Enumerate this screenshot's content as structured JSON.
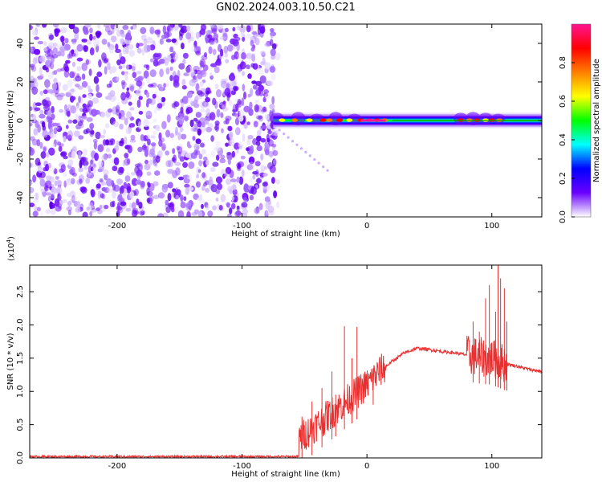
{
  "title": "GN02.2024.003.10.50.C21",
  "chart_data": [
    {
      "type": "heatmap",
      "xlabel": "Height of straight line (km)",
      "ylabel": "Frequency (Hz)",
      "xlim": [
        -270,
        140
      ],
      "ylim": [
        -50,
        50
      ],
      "xticks": [
        -200,
        -100,
        0,
        100
      ],
      "yticks": [
        -40,
        -20,
        0,
        20,
        40
      ],
      "colorbar": {
        "label": "Normalized spectral amplitude",
        "range": [
          0,
          1
        ],
        "ticks": [
          0.0,
          0.2,
          0.4,
          0.6,
          0.8
        ],
        "colors": [
          "#ffffff",
          "#6a00ff",
          "#0000ff",
          "#00ffff",
          "#00ff00",
          "#ffff00",
          "#ff7f00",
          "#ff0000",
          "#ff1493"
        ]
      },
      "noise_region_x": [
        -270,
        -75
      ],
      "signal_band": {
        "x": [
          -75,
          140
        ],
        "center_hz": 0,
        "halfwidth_hz": 4
      }
    },
    {
      "type": "line",
      "xlabel": "Height of straight line (km)",
      "ylabel": "SNR (10 * v/v)",
      "scale_label": "(x10",
      "scale_exp": "4",
      "scale_close": ")",
      "xlim": [
        -270,
        140
      ],
      "ylim": [
        0,
        2.9
      ],
      "xticks": [
        -200,
        -100,
        0,
        100
      ],
      "yticks": [
        0.0,
        0.5,
        1.0,
        1.5,
        2.0,
        2.5
      ],
      "color": "#e83030",
      "envelope": {
        "x": [
          -270,
          -55,
          -54,
          -50,
          -40,
          -30,
          -20,
          -10,
          0,
          10,
          20,
          30,
          40,
          50,
          60,
          70,
          80,
          90,
          100,
          110,
          120,
          130,
          140
        ],
        "y": [
          0.02,
          0.02,
          0.3,
          0.35,
          0.5,
          0.65,
          0.8,
          0.95,
          1.1,
          1.3,
          1.45,
          1.58,
          1.65,
          1.63,
          1.6,
          1.58,
          1.55,
          1.52,
          1.5,
          1.42,
          1.38,
          1.33,
          1.3
        ]
      },
      "spikes": [
        {
          "x": -52,
          "y": 0.62
        },
        {
          "x": -44,
          "y": 0.85
        },
        {
          "x": -36,
          "y": 1.05
        },
        {
          "x": -28,
          "y": 1.3
        },
        {
          "x": -25,
          "y": 0.95
        },
        {
          "x": -18,
          "y": 1.98
        },
        {
          "x": -12,
          "y": 1.5
        },
        {
          "x": -8,
          "y": 1.97
        },
        {
          "x": 5,
          "y": 1.35
        },
        {
          "x": 85,
          "y": 2.05
        },
        {
          "x": 90,
          "y": 1.9
        },
        {
          "x": 95,
          "y": 2.4
        },
        {
          "x": 98,
          "y": 2.6
        },
        {
          "x": 103,
          "y": 2.2
        },
        {
          "x": 105,
          "y": 2.9
        },
        {
          "x": 107,
          "y": 2.7
        },
        {
          "x": 110,
          "y": 2.55
        },
        {
          "x": 112,
          "y": 2.05
        }
      ]
    }
  ]
}
